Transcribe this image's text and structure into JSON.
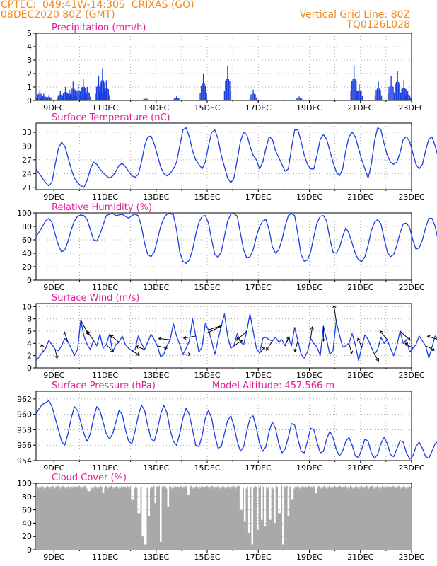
{
  "header": {
    "line1_left": "CPTEC:  049:41W-14:30S  CRIXAS (GO)",
    "line2_left": "08DEC2020 80Z (GMT)",
    "line1_right": "Vertical Grid Line: 80Z",
    "line2_right": "TQ0126L028"
  },
  "colors": {
    "header": "#f08a1c",
    "title": "#e8189a",
    "series": "#1a3ee0",
    "cloud": "#a9a9a9",
    "wind_arrow": "#000000",
    "grid": "#9a9a9a"
  },
  "x_ticks": [
    "9DEC",
    "11DEC",
    "13DEC",
    "15DEC",
    "17DEC",
    "19DEC",
    "21DEC",
    "23DEC"
  ],
  "chart_data": [
    {
      "id": "precip",
      "type": "bar",
      "title": "Precipitation (mm/h)",
      "ylim": [
        0,
        5
      ],
      "yticks": [
        0,
        1,
        2,
        3,
        4,
        5
      ],
      "x_start_day": 8.3,
      "hours_per_bar": 1,
      "events": [
        {
          "day": 8.45,
          "value": 0.8
        },
        {
          "day": 8.6,
          "value": 0.5
        },
        {
          "day": 8.8,
          "value": 0.4
        },
        {
          "day": 9.25,
          "value": 0.7
        },
        {
          "day": 9.45,
          "value": 1.0
        },
        {
          "day": 9.6,
          "value": 0.8
        },
        {
          "day": 9.75,
          "value": 1.4
        },
        {
          "day": 9.95,
          "value": 1.2
        },
        {
          "day": 10.15,
          "value": 1.6
        },
        {
          "day": 10.3,
          "value": 1.0
        },
        {
          "day": 10.75,
          "value": 1.8
        },
        {
          "day": 10.9,
          "value": 2.4
        },
        {
          "day": 11.05,
          "value": 1.5
        },
        {
          "day": 12.6,
          "value": 0.2
        },
        {
          "day": 13.8,
          "value": 0.3
        },
        {
          "day": 14.85,
          "value": 2.0
        },
        {
          "day": 15.8,
          "value": 2.6
        },
        {
          "day": 16.8,
          "value": 0.8
        },
        {
          "day": 18.6,
          "value": 0.3
        },
        {
          "day": 20.75,
          "value": 2.6
        },
        {
          "day": 20.95,
          "value": 1.2
        },
        {
          "day": 21.7,
          "value": 1.4
        },
        {
          "day": 22.2,
          "value": 1.8
        },
        {
          "day": 22.45,
          "value": 2.2
        },
        {
          "day": 22.7,
          "value": 1.5
        },
        {
          "day": 22.85,
          "value": 0.7
        }
      ]
    },
    {
      "id": "temp",
      "type": "line",
      "title": "Surface Temperature (nC)",
      "ylim": [
        20.5,
        35
      ],
      "yticks": [
        21,
        24,
        27,
        30,
        33
      ],
      "x_start_day": 8.3,
      "x_step_hours": 3,
      "values": [
        25.0,
        24.0,
        23.0,
        22.0,
        21.3,
        22.2,
        26.0,
        29.5,
        30.8,
        30.0,
        27.5,
        25.0,
        23.0,
        22.0,
        21.4,
        21.0,
        22.5,
        25.0,
        26.5,
        26.0,
        25.0,
        24.2,
        23.5,
        23.0,
        23.5,
        24.5,
        25.8,
        26.2,
        25.5,
        24.5,
        23.5,
        23.2,
        23.8,
        26.5,
        30.0,
        32.0,
        32.2,
        30.5,
        28.0,
        25.5,
        24.0,
        23.5,
        24.0,
        25.0,
        26.5,
        30.0,
        33.5,
        34.0,
        32.0,
        29.0,
        27.0,
        26.0,
        25.0,
        26.5,
        30.0,
        33.0,
        33.5,
        31.5,
        28.0,
        25.5,
        23.0,
        22.0,
        23.0,
        27.0,
        31.0,
        33.0,
        32.5,
        30.0,
        28.0,
        27.0,
        25.0,
        26.5,
        29.5,
        32.0,
        31.5,
        29.0,
        27.5,
        26.0,
        24.5,
        25.0,
        29.5,
        33.5,
        33.5,
        31.0,
        28.0,
        26.0,
        25.0,
        25.0,
        28.0,
        31.5,
        32.5,
        31.5,
        29.0,
        26.5,
        24.5,
        23.5,
        25.0,
        29.0,
        32.0,
        33.0,
        32.0,
        29.5,
        27.0,
        25.0,
        23.0,
        26.0,
        31.0,
        34.0,
        33.5,
        30.5,
        28.0,
        26.5,
        26.0,
        26.5,
        28.5,
        31.5,
        32.0,
        31.0,
        28.5,
        26.0,
        25.0,
        26.0,
        29.0,
        31.5,
        32.0,
        30.0,
        27.5,
        26.0,
        24.0,
        24.2,
        27.0,
        30.5,
        31.0,
        29.5,
        27.0,
        25.0,
        24.0,
        24.5,
        27.0,
        27.0,
        25.0,
        23.5,
        23.2,
        24.0,
        25.0,
        26.5,
        26.2,
        25.5,
        24.5,
        24.0,
        24.5,
        25.5,
        25.2,
        25.0
      ]
    },
    {
      "id": "rh",
      "type": "line",
      "title": "Relative Humidity (%)",
      "ylim": [
        0,
        100
      ],
      "yticks": [
        0,
        20,
        40,
        60,
        80,
        100
      ],
      "x_start_day": 8.3,
      "x_step_hours": 3,
      "values": [
        65,
        72,
        80,
        88,
        92,
        86,
        68,
        52,
        42,
        45,
        58,
        75,
        88,
        95,
        97,
        96,
        90,
        75,
        60,
        58,
        68,
        82,
        96,
        98,
        99,
        96,
        97,
        98,
        95,
        92,
        96,
        98,
        96,
        80,
        55,
        38,
        35,
        42,
        60,
        80,
        92,
        98,
        99,
        97,
        75,
        42,
        28,
        25,
        30,
        45,
        68,
        86,
        95,
        96,
        85,
        60,
        38,
        34,
        42,
        65,
        88,
        98,
        99,
        95,
        70,
        45,
        33,
        35,
        45,
        65,
        80,
        88,
        90,
        75,
        50,
        40,
        45,
        60,
        80,
        96,
        99,
        96,
        68,
        38,
        28,
        30,
        42,
        65,
        85,
        95,
        96,
        88,
        62,
        42,
        40,
        48,
        65,
        78,
        70,
        55,
        40,
        30,
        28,
        35,
        52,
        74,
        86,
        90,
        84,
        62,
        42,
        35,
        38,
        52,
        70,
        84,
        85,
        78,
        60,
        46,
        48,
        60,
        78,
        92,
        92,
        80,
        58,
        40,
        36,
        42,
        62,
        82,
        96,
        100,
        95,
        78,
        60,
        65,
        82,
        98,
        99,
        100,
        100,
        97,
        85,
        80,
        90,
        100,
        100,
        97,
        92,
        90,
        96,
        99,
        100,
        96,
        85,
        92,
        98,
        97
      ]
    },
    {
      "id": "wind",
      "type": "line",
      "title": "Surface Wind (m/s)",
      "ylim": [
        0,
        10.5
      ],
      "yticks": [
        0,
        2,
        4,
        6,
        8,
        10
      ],
      "x_start_day": 8.3,
      "x_step_hours": 3,
      "values": [
        1.2,
        1.8,
        2.5,
        3.2,
        4.5,
        3.8,
        3.0,
        2.8,
        3.6,
        4.8,
        4.2,
        3.2,
        2.0,
        3.0,
        7.8,
        5.2,
        3.8,
        3.0,
        4.5,
        3.6,
        5.5,
        3.2,
        3.8,
        5.5,
        2.6,
        3.8,
        4.2,
        5.2,
        3.8,
        3.2,
        2.8,
        3.0,
        5.2,
        4.0,
        3.0,
        4.2,
        5.5,
        4.6,
        3.6,
        1.8,
        2.2,
        3.6,
        4.6,
        7.2,
        5.2,
        3.8,
        2.2,
        3.2,
        4.4,
        8.0,
        5.2,
        2.6,
        3.4,
        7.2,
        6.2,
        4.4,
        2.2,
        4.6,
        6.8,
        8.8,
        5.2,
        3.2,
        3.6,
        5.6,
        4.2,
        3.8,
        6.0,
        8.8,
        6.0,
        3.2,
        2.4,
        4.8,
        5.0,
        4.6,
        4.4,
        5.0,
        4.2,
        4.6,
        3.6,
        5.0,
        3.6,
        6.6,
        4.4,
        2.2,
        1.6,
        2.6,
        4.8,
        4.0,
        3.4,
        2.0,
        6.8,
        4.6,
        2.2,
        2.8,
        7.6,
        5.4,
        3.4,
        3.6,
        4.0,
        5.6,
        3.8,
        1.2,
        3.4,
        5.4,
        4.6,
        3.4,
        2.2,
        3.0,
        5.0,
        4.0,
        4.6,
        3.2,
        2.0,
        3.6,
        6.0,
        4.0,
        4.6,
        2.6,
        3.2,
        3.8,
        5.2,
        4.4,
        3.6,
        1.6,
        3.4,
        5.2,
        4.6,
        4.2,
        3.8,
        3.2,
        4.4,
        5.6,
        4.8,
        2.4,
        1.2,
        3.4,
        5.0,
        4.0,
        3.8,
        4.4,
        4.6,
        3.8,
        3.4,
        4.0,
        5.4,
        4.6,
        3.6,
        2.6,
        4.2,
        5.8,
        4.4,
        3.4,
        2.2,
        1.2,
        0.8,
        1.4
      ]
    },
    {
      "id": "pres",
      "type": "line",
      "title": "Surface Pressure (hPa)",
      "annotation": "Model Altitude: 457.566 m",
      "ylim": [
        954,
        963
      ],
      "yticks": [
        954,
        956,
        958,
        960,
        962
      ],
      "x_start_day": 8.3,
      "x_step_hours": 3,
      "values": [
        960.0,
        960.8,
        961.3,
        961.5,
        961.8,
        961.0,
        959.5,
        958.0,
        956.5,
        956.0,
        957.5,
        959.5,
        961.0,
        960.5,
        959.0,
        957.5,
        956.5,
        957.5,
        959.5,
        961.0,
        960.5,
        959.0,
        957.5,
        956.8,
        957.5,
        959.0,
        960.5,
        960.0,
        958.0,
        956.5,
        956.2,
        957.8,
        959.8,
        961.2,
        960.5,
        958.5,
        956.8,
        956.5,
        958.0,
        960.0,
        961.2,
        960.2,
        958.0,
        956.5,
        956.0,
        957.5,
        959.5,
        960.8,
        960.0,
        958.0,
        956.0,
        955.8,
        957.2,
        959.5,
        960.5,
        959.5,
        957.2,
        955.6,
        955.8,
        957.5,
        959.2,
        959.8,
        958.5,
        956.5,
        955.2,
        955.8,
        957.8,
        959.5,
        959.8,
        958.2,
        956.2,
        955.2,
        955.8,
        957.8,
        959.0,
        958.2,
        956.2,
        955.0,
        955.5,
        957.0,
        958.8,
        958.6,
        956.8,
        955.2,
        955.0,
        956.5,
        958.2,
        958.0,
        956.4,
        955.0,
        955.2,
        956.8,
        957.8,
        957.0,
        955.5,
        954.6,
        955.2,
        956.5,
        957.0,
        956.0,
        954.6,
        954.4,
        955.5,
        956.8,
        956.5,
        955.0,
        954.3,
        954.8,
        956.2,
        957.0,
        956.2,
        954.8,
        954.5,
        955.5,
        956.6,
        956.4,
        955.0,
        954.2,
        954.6,
        955.8,
        956.4,
        955.6,
        954.5,
        954.3,
        955.2,
        956.2,
        956.5,
        955.3,
        954.4,
        954.6,
        955.8,
        956.6,
        956.2,
        954.8,
        954.2,
        954.8,
        955.8,
        956.5,
        956.0,
        954.8,
        954.5,
        955.3,
        956.0,
        955.5,
        954.6,
        954.3,
        955.0,
        956.0,
        956.4,
        955.6,
        954.6,
        954.3,
        954.5,
        954.0,
        955.5
      ]
    },
    {
      "id": "cloud",
      "type": "area",
      "title": "Cloud Cover (%)",
      "ylim": [
        0,
        100
      ],
      "yticks": [
        0,
        20,
        40,
        60,
        80,
        100
      ],
      "x_start_day": 8.3,
      "x_step_hours": 1,
      "base": 96,
      "dips": [
        {
          "day": 10.35,
          "value": 88
        },
        {
          "day": 10.9,
          "value": 85
        },
        {
          "day": 12.05,
          "value": 75
        },
        {
          "day": 12.3,
          "value": 55
        },
        {
          "day": 12.45,
          "value": 20
        },
        {
          "day": 12.55,
          "value": 8
        },
        {
          "day": 12.7,
          "value": 50
        },
        {
          "day": 12.95,
          "value": 70
        },
        {
          "day": 13.15,
          "value": 12
        },
        {
          "day": 13.45,
          "value": 65
        },
        {
          "day": 14.25,
          "value": 82
        },
        {
          "day": 16.3,
          "value": 60
        },
        {
          "day": 16.45,
          "value": 42
        },
        {
          "day": 16.6,
          "value": 25
        },
        {
          "day": 16.75,
          "value": 8
        },
        {
          "day": 16.95,
          "value": 30
        },
        {
          "day": 17.1,
          "value": 45
        },
        {
          "day": 17.25,
          "value": 35
        },
        {
          "day": 17.45,
          "value": 45
        },
        {
          "day": 17.6,
          "value": 40
        },
        {
          "day": 17.8,
          "value": 55
        },
        {
          "day": 17.95,
          "value": 8
        },
        {
          "day": 18.15,
          "value": 50
        },
        {
          "day": 18.3,
          "value": 75
        },
        {
          "day": 19.25,
          "value": 85
        }
      ]
    }
  ]
}
